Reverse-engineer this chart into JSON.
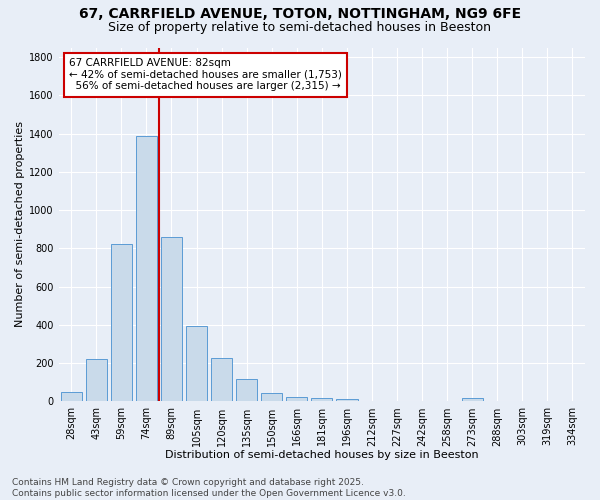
{
  "title": "67, CARRFIELD AVENUE, TOTON, NOTTINGHAM, NG9 6FE",
  "subtitle": "Size of property relative to semi-detached houses in Beeston",
  "xlabel": "Distribution of semi-detached houses by size in Beeston",
  "ylabel": "Number of semi-detached properties",
  "bar_labels": [
    "28sqm",
    "43sqm",
    "59sqm",
    "74sqm",
    "89sqm",
    "105sqm",
    "120sqm",
    "135sqm",
    "150sqm",
    "166sqm",
    "181sqm",
    "196sqm",
    "212sqm",
    "227sqm",
    "242sqm",
    "258sqm",
    "273sqm",
    "288sqm",
    "303sqm",
    "319sqm",
    "334sqm"
  ],
  "bar_values": [
    50,
    220,
    825,
    1390,
    860,
    395,
    225,
    120,
    45,
    25,
    20,
    15,
    0,
    0,
    0,
    0,
    20,
    0,
    0,
    0,
    0
  ],
  "bar_color": "#c9daea",
  "bar_edge_color": "#5b9bd5",
  "vline_color": "#cc0000",
  "annotation_line1": "67 CARRFIELD AVENUE: 82sqm",
  "annotation_line2": "← 42% of semi-detached houses are smaller (1,753)",
  "annotation_line3": "  56% of semi-detached houses are larger (2,315) →",
  "annotation_box_color": "white",
  "annotation_box_edge_color": "#cc0000",
  "ylim": [
    0,
    1850
  ],
  "yticks": [
    0,
    200,
    400,
    600,
    800,
    1000,
    1200,
    1400,
    1600,
    1800
  ],
  "footer_text": "Contains HM Land Registry data © Crown copyright and database right 2025.\nContains public sector information licensed under the Open Government Licence v3.0.",
  "background_color": "#e8eef7",
  "grid_color": "white",
  "title_fontsize": 10,
  "subtitle_fontsize": 9,
  "axis_label_fontsize": 8,
  "tick_fontsize": 7,
  "annotation_fontsize": 7.5,
  "footer_fontsize": 6.5
}
